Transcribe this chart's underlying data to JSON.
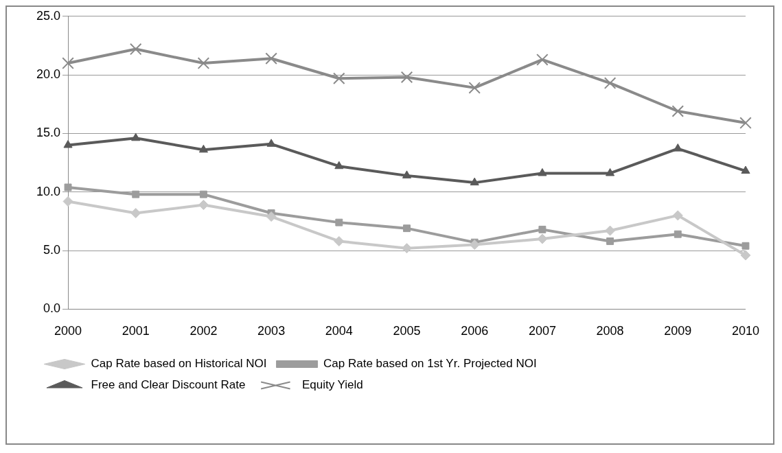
{
  "chart_data": {
    "type": "line",
    "categories": [
      "2000",
      "2001",
      "2002",
      "2003",
      "2004",
      "2005",
      "2006",
      "2007",
      "2008",
      "2009",
      "2010"
    ],
    "series": [
      {
        "name": "Cap Rate based on Historical NOI",
        "color": "#c8c8c8",
        "marker": "diamond",
        "values": [
          9.2,
          8.2,
          8.9,
          7.9,
          5.8,
          5.2,
          5.5,
          6.0,
          6.7,
          8.0,
          4.6
        ]
      },
      {
        "name": "Cap Rate based on 1st Yr. Projected NOI",
        "color": "#9c9c9c",
        "marker": "square",
        "values": [
          10.4,
          9.8,
          9.8,
          8.2,
          7.4,
          6.9,
          5.7,
          6.8,
          5.8,
          6.4,
          5.4
        ]
      },
      {
        "name": "Free and Clear Discount Rate",
        "color": "#5a5a5a",
        "marker": "triangle",
        "values": [
          14.0,
          14.6,
          13.6,
          14.1,
          12.2,
          11.4,
          10.8,
          11.6,
          11.6,
          13.7,
          11.8
        ]
      },
      {
        "name": "Equity Yield",
        "color": "#8a8a8a",
        "marker": "cross",
        "values": [
          21.0,
          22.2,
          21.0,
          21.4,
          19.7,
          19.8,
          18.9,
          21.3,
          19.3,
          16.9,
          15.9
        ]
      }
    ],
    "ylim": [
      0,
      25
    ],
    "yticks": [
      {
        "value": 0,
        "label": "0.0"
      },
      {
        "value": 5,
        "label": "5.0"
      },
      {
        "value": 10,
        "label": "10.0"
      },
      {
        "value": 15,
        "label": "15.0"
      },
      {
        "value": 20,
        "label": "20.0"
      },
      {
        "value": 25,
        "label": "25.0"
      }
    ],
    "grid": "y",
    "legend": "bottom",
    "line_style": "solid"
  }
}
